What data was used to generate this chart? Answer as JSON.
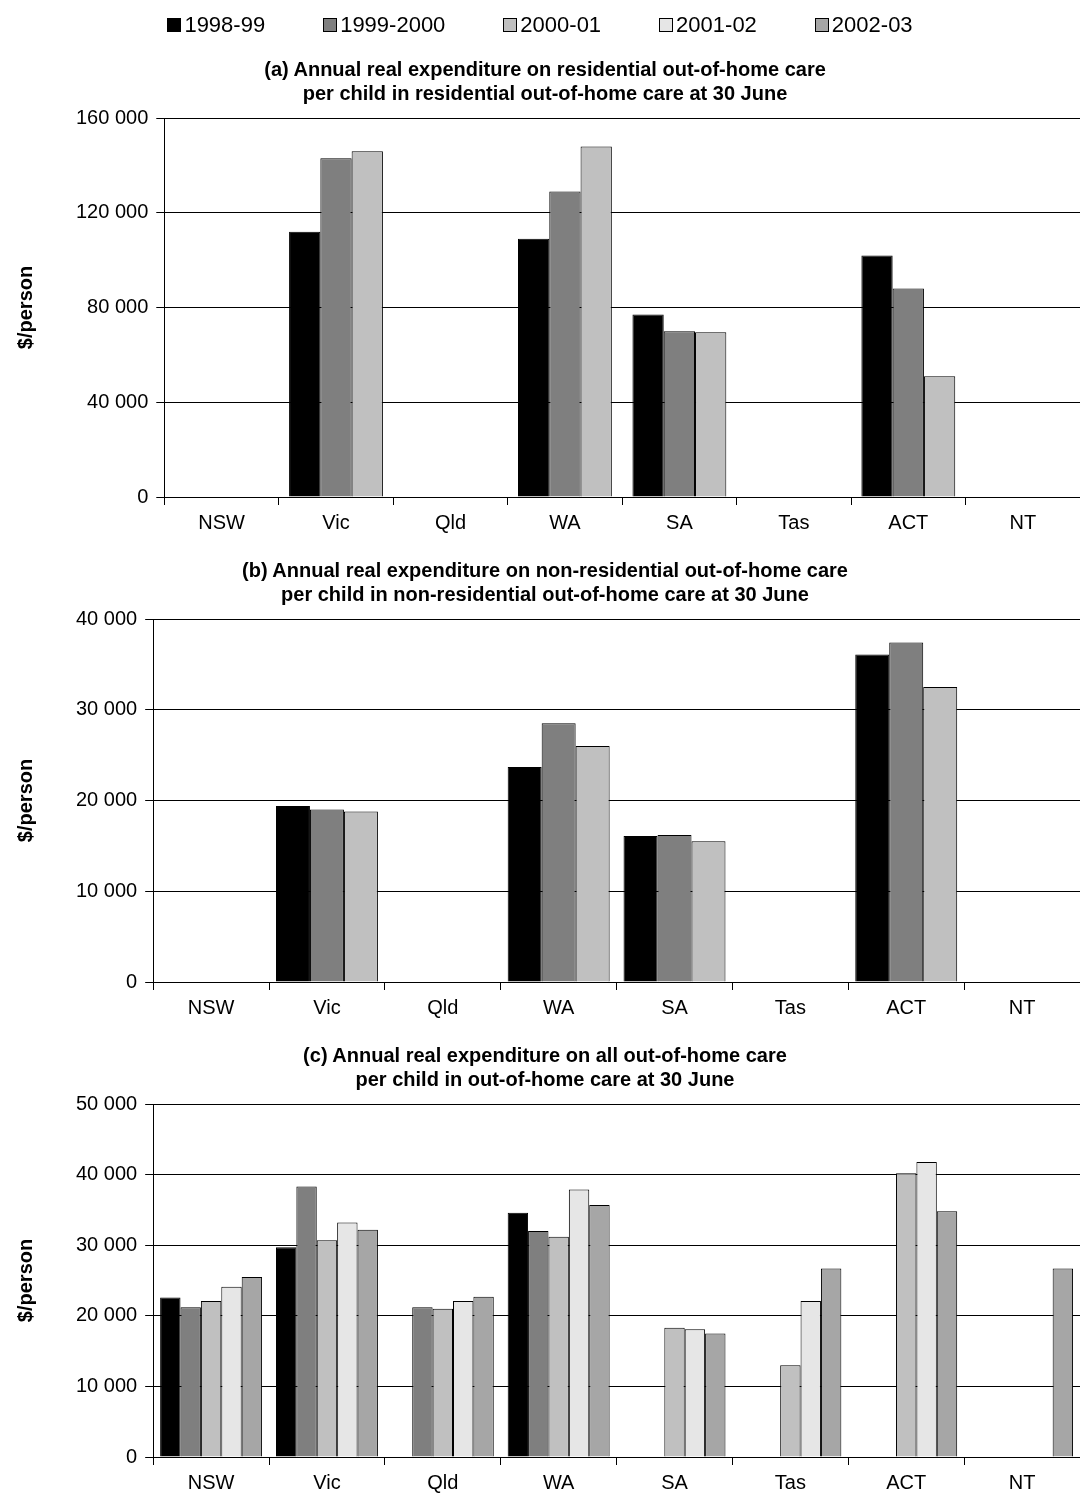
{
  "chart_data": [
    {
      "type": "bar",
      "title": "(a) Annual real expenditure on residential out-of-home care\nper child in residential out-of-home care at 30 June",
      "ylabel": "$/person",
      "categories": [
        "NSW",
        "Vic",
        "Qld",
        "WA",
        "SA",
        "Tas",
        "ACT",
        "NT"
      ],
      "series": [
        {
          "name": "1998-99",
          "color": "#000000",
          "values": [
            null,
            112000,
            null,
            109000,
            77000,
            null,
            102000,
            null
          ]
        },
        {
          "name": "1999-2000",
          "color": "#7f7f7f",
          "values": [
            null,
            143000,
            null,
            129000,
            70000,
            null,
            88000,
            null
          ]
        },
        {
          "name": "2000-01",
          "color": "#c0c0c0",
          "values": [
            null,
            146000,
            null,
            148000,
            69500,
            null,
            51000,
            null
          ]
        },
        {
          "name": "2001-02",
          "color": "#e6e6e6",
          "values": [
            null,
            null,
            null,
            null,
            null,
            null,
            null,
            null
          ]
        },
        {
          "name": "2002-03",
          "color": "#a6a6a6",
          "values": [
            null,
            null,
            null,
            null,
            null,
            null,
            null,
            null
          ]
        }
      ],
      "ylim": [
        0,
        160000
      ],
      "yticks": [
        {
          "value": 0,
          "label": "0"
        },
        {
          "value": 40000,
          "label": "40 000"
        },
        {
          "value": 80000,
          "label": "80 000"
        },
        {
          "value": 120000,
          "label": "120 000"
        },
        {
          "value": 160000,
          "label": "160 000"
        }
      ],
      "grid": "y",
      "legend": "top"
    },
    {
      "type": "bar",
      "title": "(b) Annual real expenditure on non-residential out-of-home care\nper child in non-residential out-of-home care at 30 June",
      "ylabel": "$/person",
      "categories": [
        "NSW",
        "Vic",
        "Qld",
        "WA",
        "SA",
        "Tas",
        "ACT",
        "NT"
      ],
      "series": [
        {
          "color": "#000000",
          "values": [
            null,
            19400,
            null,
            23700,
            16100,
            null,
            36100,
            null
          ]
        },
        {
          "color": "#7f7f7f",
          "values": [
            null,
            19000,
            null,
            28500,
            16200,
            null,
            37400,
            null
          ]
        },
        {
          "color": "#c0c0c0",
          "values": [
            null,
            18800,
            null,
            26000,
            15500,
            null,
            32500,
            null
          ]
        }
      ],
      "ylim": [
        0,
        40000
      ],
      "yticks": [
        {
          "value": 0,
          "label": "0"
        },
        {
          "value": 10000,
          "label": "10 000"
        },
        {
          "value": 20000,
          "label": "20 000"
        },
        {
          "value": 30000,
          "label": "30 000"
        },
        {
          "value": 40000,
          "label": "40 000"
        }
      ],
      "grid": "y"
    },
    {
      "type": "bar",
      "title": "(c) Annual real expenditure on all out-of-home care\nper child in out-of-home care at 30 June",
      "ylabel": "$/person",
      "categories": [
        "NSW",
        "Vic",
        "Qld",
        "WA",
        "SA",
        "Tas",
        "ACT",
        "NT"
      ],
      "series": [
        {
          "color": "#000000",
          "values": [
            22600,
            29700,
            null,
            34600,
            null,
            null,
            null,
            null
          ]
        },
        {
          "color": "#7f7f7f",
          "values": [
            21200,
            38300,
            21200,
            32000,
            null,
            null,
            null,
            null
          ]
        },
        {
          "color": "#c0c0c0",
          "values": [
            22100,
            30700,
            21000,
            31200,
            18300,
            13000,
            40200,
            null
          ]
        },
        {
          "color": "#e6e6e6",
          "values": [
            24100,
            33200,
            22100,
            37900,
            18100,
            22100,
            41800,
            null
          ]
        },
        {
          "color": "#a6a6a6",
          "values": [
            25500,
            32200,
            22700,
            35700,
            17500,
            26700,
            34800,
            26700
          ]
        }
      ],
      "ylim": [
        0,
        50000
      ],
      "yticks": [
        {
          "value": 0,
          "label": "0"
        },
        {
          "value": 10000,
          "label": "10 000"
        },
        {
          "value": 20000,
          "label": "20 000"
        },
        {
          "value": 30000,
          "label": "30 000"
        },
        {
          "value": 40000,
          "label": "40 000"
        },
        {
          "value": 50000,
          "label": "50 000"
        }
      ],
      "grid": "y"
    }
  ]
}
